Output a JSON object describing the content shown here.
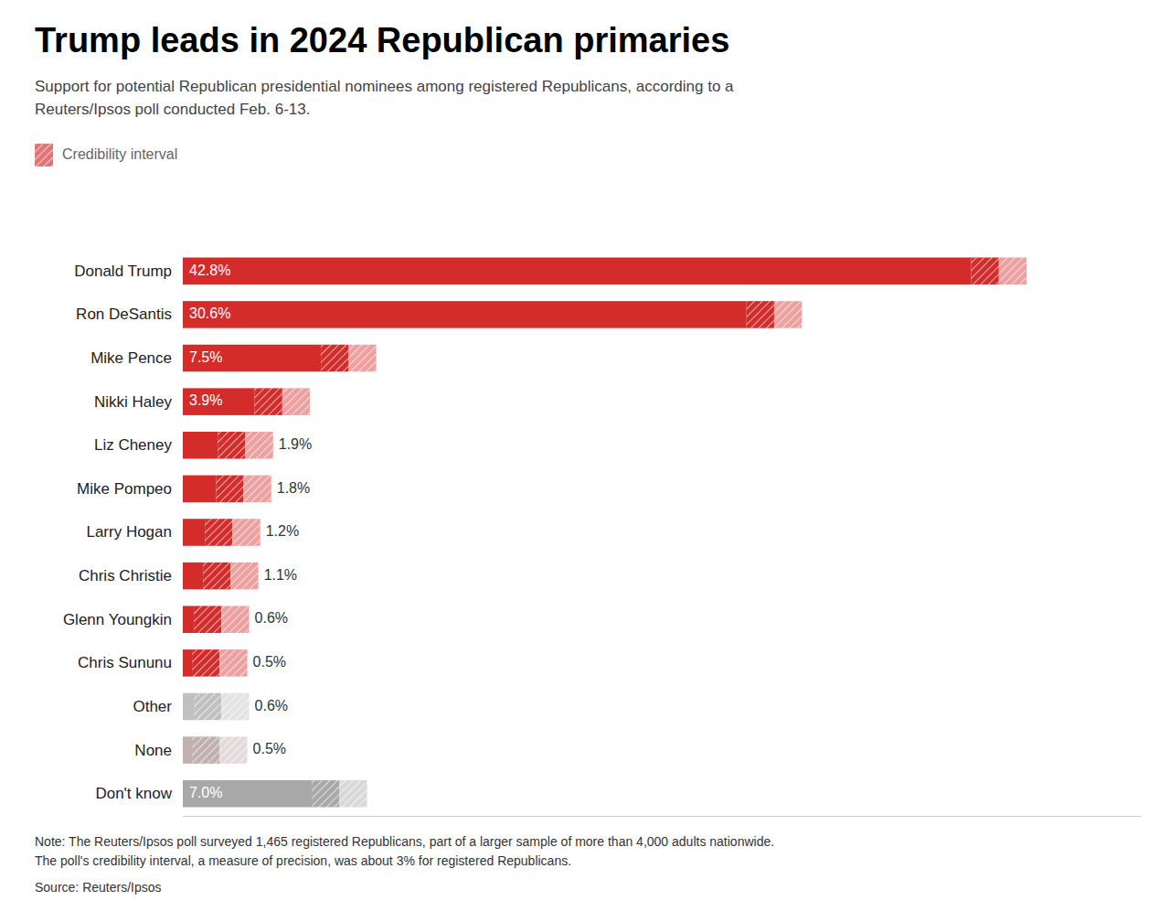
{
  "chart_data": {
    "type": "bar",
    "orientation": "horizontal",
    "title": "Trump leads in 2024 Republican primaries",
    "subtitle": "Support for potential Republican presidential nominees among registered Republicans, according to a\nReuters/Ipsos poll conducted Feb. 6-13.",
    "categories": [
      "Donald Trump",
      "Ron DeSantis",
      "Mike Pence",
      "Nikki Haley",
      "Liz Cheney",
      "Mike Pompeo",
      "Larry Hogan",
      "Chris Christie",
      "Glenn Youngkin",
      "Chris Sununu",
      "Other",
      "None",
      "Don't know"
    ],
    "values": [
      42.8,
      30.6,
      7.5,
      3.9,
      1.9,
      1.8,
      1.2,
      1.1,
      0.6,
      0.5,
      0.6,
      0.5,
      7.0
    ],
    "value_labels": [
      "42.8%",
      "30.6%",
      "7.5%",
      "3.9%",
      "1.9%",
      "1.8%",
      "1.2%",
      "1.1%",
      "0.6%",
      "0.5%",
      "0.6%",
      "0.5%",
      "7.0%"
    ],
    "colors": [
      "#d42b2b",
      "#d42b2b",
      "#d42b2b",
      "#d42b2b",
      "#d42b2b",
      "#d42b2b",
      "#d42b2b",
      "#d42b2b",
      "#d42b2b",
      "#d42b2b",
      "#c0c0c0",
      "#c0b0b0",
      "#a8a8a8"
    ],
    "ci": 3.0,
    "ci_label": "Credibility interval",
    "xlim": [
      0,
      52
    ],
    "data_labels": true,
    "tick_labels": "y",
    "grid": false,
    "note": "Note: The Reuters/Ipsos poll surveyed 1,465 registered Republicans, part of a larger sample of more than 4,000 adults nationwide.\nThe poll's credibility interval, a measure of precision, was about 3% for registered Republicans.",
    "source": "Source: Reuters/Ipsos"
  }
}
